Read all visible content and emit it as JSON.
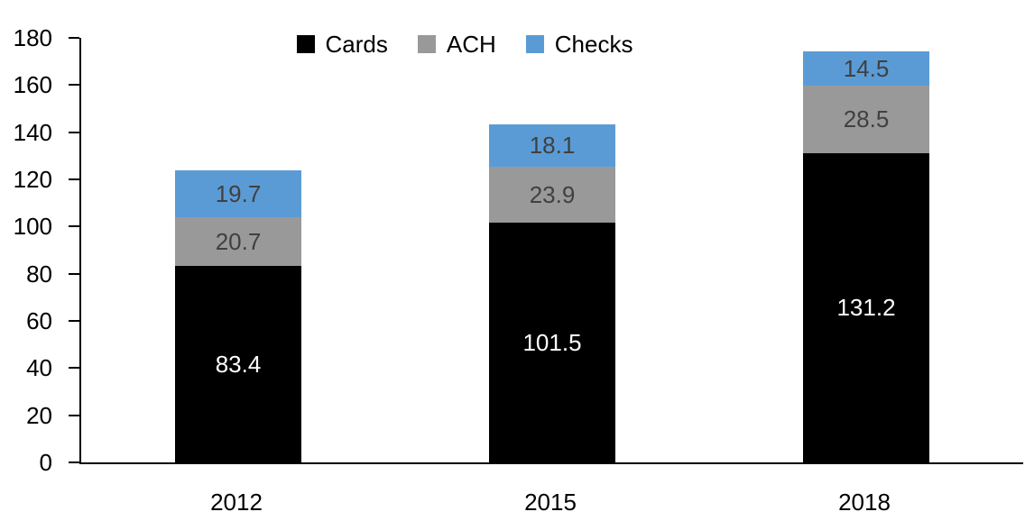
{
  "chart_data": {
    "type": "bar",
    "stacked": true,
    "title": "",
    "categories": [
      "2012",
      "2015",
      "2018"
    ],
    "series": [
      {
        "name": "Cards",
        "color": "#000000",
        "label_color": "#ffffff",
        "values": [
          83.4,
          101.5,
          131.2
        ]
      },
      {
        "name": "ACH",
        "color": "#999999",
        "label_color": "#404040",
        "values": [
          20.7,
          23.9,
          28.5
        ]
      },
      {
        "name": "Checks",
        "color": "#5B9BD5",
        "label_color": "#404040",
        "values": [
          19.7,
          18.1,
          14.5
        ]
      }
    ],
    "totals": [
      123.8,
      143.5,
      174.2
    ],
    "xlabel": "",
    "ylabel": "",
    "ylim": [
      0,
      180
    ],
    "yticks": [
      0,
      20,
      40,
      60,
      80,
      100,
      120,
      140,
      160,
      180
    ],
    "legend_position": "top",
    "grid": false,
    "axis_color": "#000000",
    "background_color": "#ffffff"
  }
}
